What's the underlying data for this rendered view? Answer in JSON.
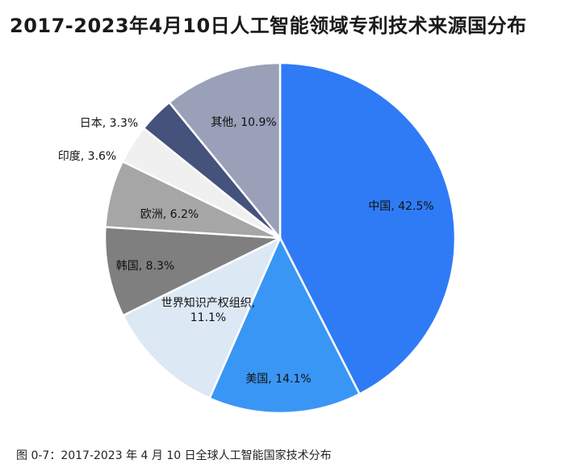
{
  "title": "2017-2023年4月10日人工智能领域专利技术来源国分布",
  "caption": "图 0-7：2017-2023 年 4 月 10 日全球人工智能国家技术分布",
  "chart_data": {
    "type": "pie",
    "title": "2017-2023年4月10日人工智能领域专利技术来源国分布",
    "slices": [
      {
        "label": "中国",
        "value": 42.5,
        "display": "中国, 42.5%",
        "color": "#2f7bf6"
      },
      {
        "label": "美国",
        "value": 14.1,
        "display": "美国, 14.1%",
        "color": "#3a96f4"
      },
      {
        "label": "世界知识产权组织",
        "value": 11.1,
        "display": "世界知识产权组织,|11.1%",
        "color": "#dde8f5"
      },
      {
        "label": "韩国",
        "value": 8.3,
        "display": "韩国, 8.3%",
        "color": "#7f7f7f"
      },
      {
        "label": "欧洲",
        "value": 6.2,
        "display": "欧洲, 6.2%",
        "color": "#a6a6a6"
      },
      {
        "label": "印度",
        "value": 3.6,
        "display": "印度, 3.6%",
        "color": "#f0f0f0"
      },
      {
        "label": "日本",
        "value": 3.3,
        "display": "日本, 3.3%",
        "color": "#44527c"
      },
      {
        "label": "其他",
        "value": 10.9,
        "display": "其他, 10.9%",
        "color": "#9aa0b8"
      }
    ],
    "start_angle_deg": 0,
    "direction": "clockwise",
    "legend": "none"
  }
}
